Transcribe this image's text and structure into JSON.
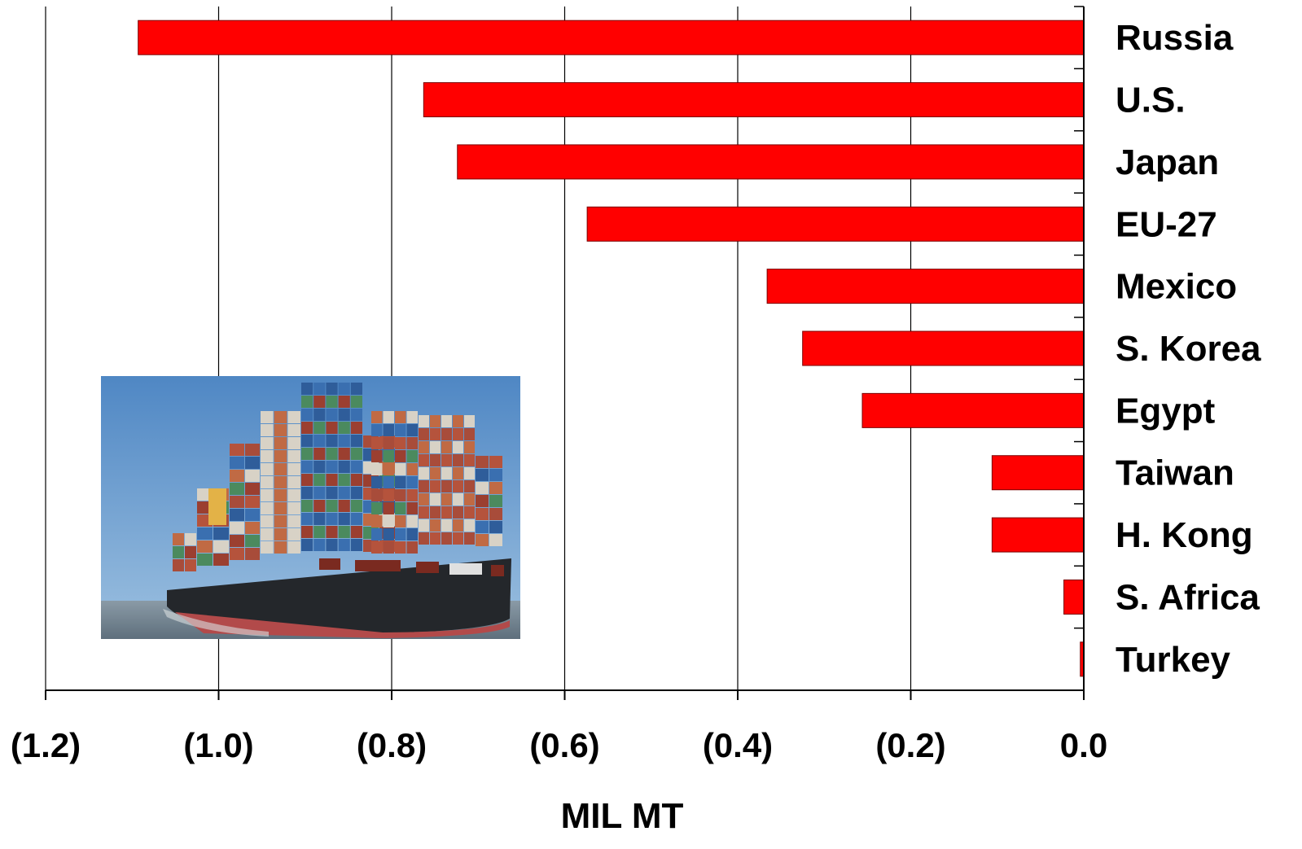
{
  "chart_data": {
    "type": "bar",
    "orientation": "horizontal",
    "categories": [
      "Russia",
      "U.S.",
      "Japan",
      "EU-27",
      "Mexico",
      "S. Korea",
      "Egypt",
      "Taiwan",
      "H. Kong",
      "S. Africa",
      "Turkey"
    ],
    "values": [
      -1.093,
      -0.763,
      -0.724,
      -0.574,
      -0.366,
      -0.325,
      -0.256,
      -0.106,
      -0.106,
      -0.023,
      -0.004
    ],
    "xlabel": "MIL MT",
    "xlim": [
      -1.2,
      0.0
    ],
    "xticks": [
      -1.2,
      -1.0,
      -0.8,
      -0.6,
      -0.4,
      -0.2,
      0.0
    ],
    "xtick_labels": [
      "(1.2)",
      "(1.0)",
      "(0.8)",
      "(0.6)",
      "(0.4)",
      "(0.2)",
      "0.0"
    ],
    "grid": "vertical",
    "legend": "none",
    "bar_color": "#ff0000",
    "inset_image": "container-ship-photo"
  }
}
